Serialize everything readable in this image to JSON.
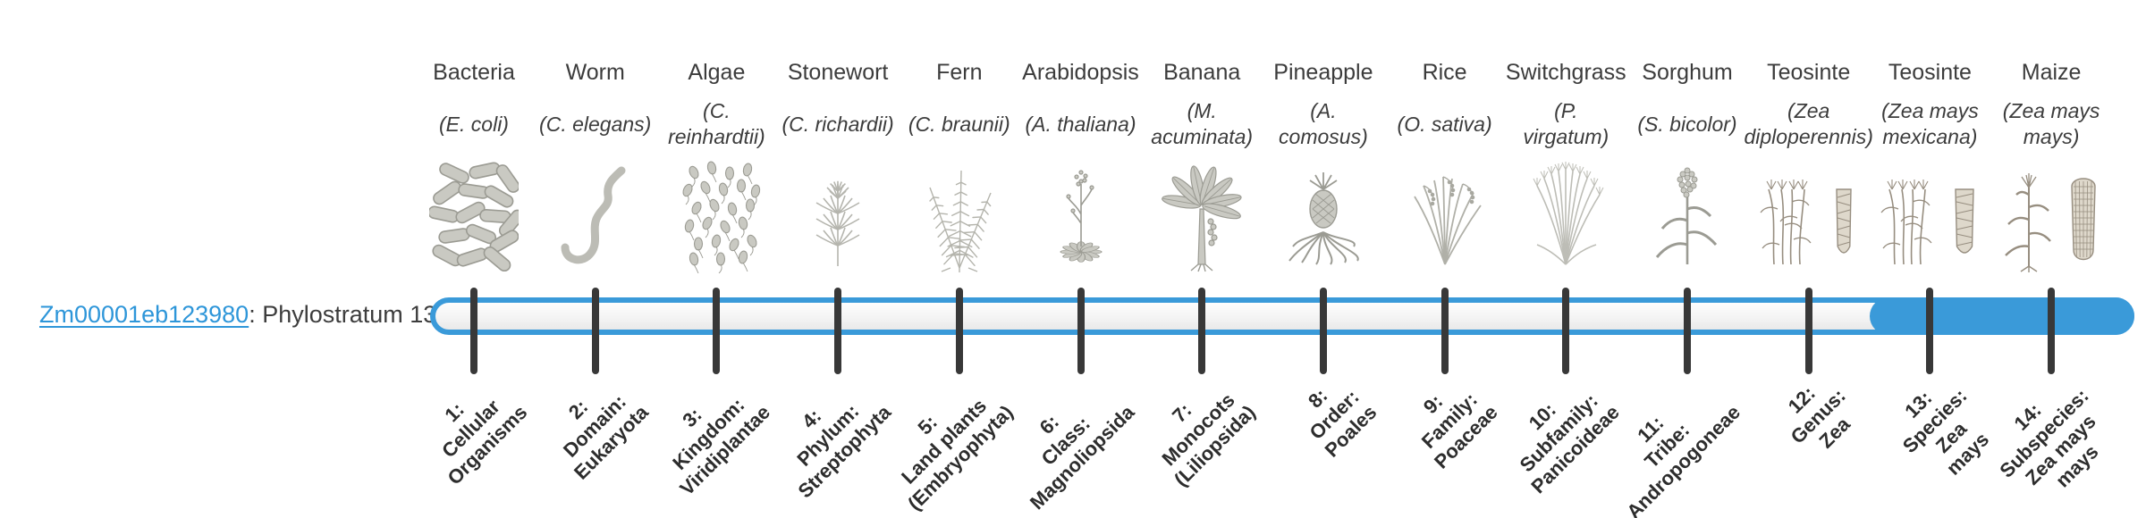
{
  "figure": {
    "gene_link": "Zm00001eb123980",
    "gene_suffix": ": Phylostratum 13",
    "phylostratum": 13,
    "highlight_from_stratum": 13
  },
  "colors": {
    "accent_blue": "#3a9ad9",
    "link_blue": "#2e96d9",
    "tick_dark": "#383838",
    "text_dark": "#3c3c3c",
    "illustration_gray": "#b5b5ae",
    "illustration_warm_gray": "#a39a8c"
  },
  "strata": [
    {
      "index": 1,
      "organism": "Bacteria",
      "species": "(E. coli)",
      "clade": "1:\nCellular\nOrganisms",
      "icon": "bacteria-icon",
      "highlighted": false
    },
    {
      "index": 2,
      "organism": "Worm",
      "species": "(C. elegans)",
      "clade": "2:\nDomain:\nEukaryota",
      "icon": "worm-icon",
      "highlighted": false
    },
    {
      "index": 3,
      "organism": "Algae",
      "species": "(C.\nreinhardtii)",
      "clade": "3:\nKingdom:\nViridiplantae",
      "icon": "algae-icon",
      "highlighted": false
    },
    {
      "index": 4,
      "organism": "Stonewort",
      "species": "(C. richardii)",
      "clade": "4:\nPhylum:\nStreptophyta",
      "icon": "stonewort-icon",
      "highlighted": false
    },
    {
      "index": 5,
      "organism": "Fern",
      "species": "(C. braunii)",
      "clade": "5:\nLand plants\n(Embryophyta)",
      "icon": "fern-icon",
      "highlighted": false
    },
    {
      "index": 6,
      "organism": "Arabidopsis",
      "species": "(A. thaliana)",
      "clade": "6:\nClass:\nMagnoliopsida",
      "icon": "arabidopsis-icon",
      "highlighted": false
    },
    {
      "index": 7,
      "organism": "Banana",
      "species": "(M.\nacuminata)",
      "clade": "7:\nMonocots\n(Liliopsida)",
      "icon": "banana-icon",
      "highlighted": false
    },
    {
      "index": 8,
      "organism": "Pineapple",
      "species": "(A.\ncomosus)",
      "clade": "8:\nOrder:\nPoales",
      "icon": "pineapple-icon",
      "highlighted": false
    },
    {
      "index": 9,
      "organism": "Rice",
      "species": "(O. sativa)",
      "clade": "9:\nFamily:\nPoaceae",
      "icon": "rice-icon",
      "highlighted": false
    },
    {
      "index": 10,
      "organism": "Switchgrass",
      "species": "(P.\nvirgatum)",
      "clade": "10:\nSubfamily:\nPanicoideae",
      "icon": "switchgrass-icon",
      "highlighted": false
    },
    {
      "index": 11,
      "organism": "Sorghum",
      "species": "(S. bicolor)",
      "clade": "11:\nTribe:\nAndropogoneae",
      "icon": "sorghum-icon",
      "highlighted": false
    },
    {
      "index": 12,
      "organism": "Teosinte",
      "species": "(Zea\ndiploperennis)",
      "clade": "12:\nGenus:\nZea",
      "icon": "teosinte-diploperennis-icon",
      "highlighted": false
    },
    {
      "index": 13,
      "organism": "Teosinte",
      "species": "(Zea mays\nmexicana)",
      "clade": "13:\nSpecies:\nZea\nmays",
      "icon": "teosinte-mexicana-icon",
      "highlighted": true
    },
    {
      "index": 14,
      "organism": "Maize",
      "species": "(Zea mays\nmays)",
      "clade": "14:\nSubspecies:\nZea mays\nmays",
      "icon": "maize-icon",
      "highlighted": true
    }
  ]
}
